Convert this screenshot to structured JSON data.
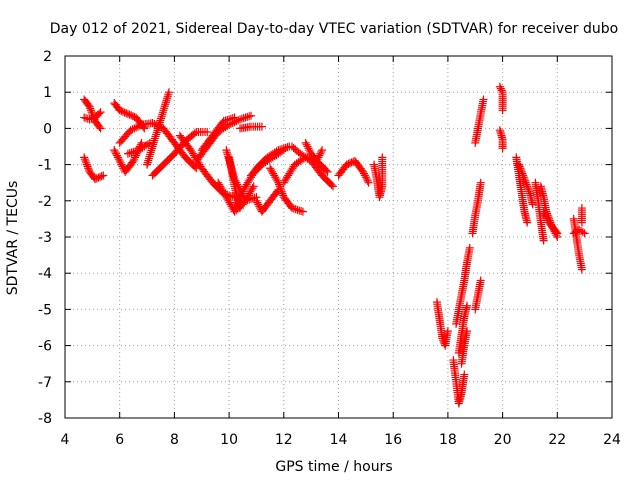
{
  "chart_data": {
    "type": "scatter",
    "title": "Day 012 of 2021, Sidereal Day-to-day VTEC variation (SDTVAR) for receiver dubo",
    "xlabel": "GPS time / hours",
    "ylabel": "SDTVAR / TECUs",
    "xlim": [
      4,
      24
    ],
    "ylim": [
      -8,
      2
    ],
    "xticks": [
      4,
      6,
      8,
      10,
      12,
      14,
      16,
      18,
      20,
      22,
      24
    ],
    "yticks": [
      -8,
      -7,
      -6,
      -5,
      -4,
      -3,
      -2,
      -1,
      0,
      1,
      2
    ],
    "grid": true,
    "marker": "+",
    "color": "#ff0000",
    "tracks": [
      [
        [
          4.7,
          0.8
        ],
        [
          4.9,
          0.6
        ],
        [
          5.1,
          0.2
        ],
        [
          5.3,
          0.0
        ]
      ],
      [
        [
          4.7,
          0.3
        ],
        [
          4.9,
          0.25
        ],
        [
          5.1,
          0.3
        ],
        [
          5.3,
          0.45
        ]
      ],
      [
        [
          4.7,
          -0.8
        ],
        [
          4.9,
          -1.2
        ],
        [
          5.1,
          -1.4
        ],
        [
          5.4,
          -1.3
        ]
      ],
      [
        [
          5.8,
          0.7
        ],
        [
          6.0,
          0.5
        ],
        [
          6.3,
          0.4
        ],
        [
          6.6,
          0.3
        ],
        [
          6.9,
          0.0
        ]
      ],
      [
        [
          5.8,
          -0.6
        ],
        [
          6.2,
          -1.2
        ],
        [
          6.5,
          -0.9
        ],
        [
          6.8,
          -0.4
        ]
      ],
      [
        [
          6.0,
          -0.4
        ],
        [
          6.4,
          -0.05
        ],
        [
          6.8,
          0.1
        ],
        [
          7.2,
          0.15
        ],
        [
          7.6,
          0.0
        ],
        [
          8.0,
          -0.4
        ],
        [
          8.4,
          -0.8
        ],
        [
          8.8,
          -1.1
        ]
      ],
      [
        [
          7.0,
          -1.0
        ],
        [
          7.2,
          -0.5
        ],
        [
          7.4,
          0.0
        ],
        [
          7.6,
          0.5
        ],
        [
          7.8,
          1.0
        ]
      ],
      [
        [
          6.3,
          -0.7
        ],
        [
          6.7,
          -0.6
        ],
        [
          7.1,
          -0.4
        ]
      ],
      [
        [
          7.2,
          -1.3
        ],
        [
          7.6,
          -1.0
        ],
        [
          8.0,
          -0.7
        ],
        [
          8.4,
          -0.35
        ],
        [
          8.8,
          -0.1
        ],
        [
          9.2,
          -0.1
        ]
      ],
      [
        [
          8.2,
          -0.2
        ],
        [
          8.6,
          -0.6
        ],
        [
          9.0,
          -1.1
        ],
        [
          9.4,
          -1.5
        ],
        [
          9.8,
          -1.8
        ],
        [
          10.2,
          -1.9
        ]
      ],
      [
        [
          8.8,
          -0.9
        ],
        [
          9.2,
          -0.5
        ],
        [
          9.6,
          -0.1
        ],
        [
          10.0,
          0.1
        ],
        [
          10.4,
          0.25
        ],
        [
          10.8,
          0.35
        ]
      ],
      [
        [
          9.0,
          -0.6
        ],
        [
          9.4,
          -0.2
        ],
        [
          9.8,
          0.2
        ],
        [
          10.2,
          0.3
        ]
      ],
      [
        [
          9.6,
          -1.5
        ],
        [
          9.9,
          -1.9
        ],
        [
          10.2,
          -2.3
        ],
        [
          10.5,
          -2.1
        ],
        [
          10.9,
          -1.6
        ]
      ],
      [
        [
          9.9,
          -0.6
        ],
        [
          10.2,
          -1.4
        ],
        [
          10.6,
          -2.0
        ],
        [
          11.0,
          -1.9
        ]
      ],
      [
        [
          10.0,
          -0.8
        ],
        [
          10.2,
          -1.6
        ],
        [
          10.4,
          -2.2
        ]
      ],
      [
        [
          10.2,
          -2.2
        ],
        [
          10.6,
          -1.6
        ],
        [
          11.0,
          -1.1
        ],
        [
          11.4,
          -0.8
        ],
        [
          11.8,
          -0.6
        ],
        [
          12.2,
          -0.5
        ]
      ],
      [
        [
          10.4,
          0.0
        ],
        [
          10.8,
          0.05
        ],
        [
          11.2,
          0.05
        ]
      ],
      [
        [
          10.8,
          -1.3
        ],
        [
          11.2,
          -1.0
        ],
        [
          11.6,
          -0.8
        ],
        [
          12.0,
          -0.6
        ]
      ],
      [
        [
          11.0,
          -2.0
        ],
        [
          11.2,
          -2.3
        ],
        [
          11.5,
          -2.0
        ],
        [
          11.8,
          -1.7
        ]
      ],
      [
        [
          11.5,
          -1.1
        ],
        [
          11.8,
          -1.5
        ],
        [
          12.0,
          -1.9
        ],
        [
          12.3,
          -2.2
        ],
        [
          12.7,
          -2.3
        ]
      ],
      [
        [
          12.0,
          -1.5
        ],
        [
          12.4,
          -1.0
        ],
        [
          12.8,
          -0.8
        ],
        [
          13.2,
          -0.9
        ],
        [
          13.6,
          -1.2
        ]
      ],
      [
        [
          12.3,
          -0.5
        ],
        [
          12.6,
          -0.7
        ],
        [
          13.0,
          -0.9
        ],
        [
          13.4,
          -1.3
        ],
        [
          13.8,
          -1.6
        ]
      ],
      [
        [
          12.8,
          -0.4
        ],
        [
          13.0,
          -0.7
        ],
        [
          13.2,
          -0.9
        ],
        [
          13.4,
          -0.6
        ]
      ],
      [
        [
          14.0,
          -1.3
        ],
        [
          14.3,
          -1.0
        ],
        [
          14.6,
          -0.9
        ],
        [
          14.9,
          -1.2
        ],
        [
          15.1,
          -1.5
        ]
      ],
      [
        [
          15.3,
          -1.0
        ],
        [
          15.4,
          -1.4
        ],
        [
          15.5,
          -1.9
        ],
        [
          15.6,
          -1.6
        ],
        [
          15.6,
          -0.8
        ]
      ],
      [
        [
          17.6,
          -4.8
        ],
        [
          17.7,
          -5.3
        ],
        [
          17.8,
          -5.8
        ],
        [
          17.9,
          -6.0
        ],
        [
          18.0,
          -5.6
        ]
      ],
      [
        [
          18.2,
          -6.4
        ],
        [
          18.3,
          -7.0
        ],
        [
          18.4,
          -7.6
        ],
        [
          18.5,
          -7.3
        ],
        [
          18.6,
          -6.8
        ]
      ],
      [
        [
          18.3,
          -5.4
        ],
        [
          18.4,
          -5.0
        ],
        [
          18.5,
          -4.6
        ],
        [
          18.6,
          -4.2
        ],
        [
          18.7,
          -3.7
        ],
        [
          18.8,
          -3.3
        ]
      ],
      [
        [
          18.4,
          -6.2
        ],
        [
          18.5,
          -5.7
        ],
        [
          18.6,
          -5.2
        ],
        [
          18.7,
          -4.9
        ]
      ],
      [
        [
          18.5,
          -6.5
        ],
        [
          18.6,
          -6.0
        ],
        [
          18.7,
          -5.6
        ]
      ],
      [
        [
          19.0,
          -5.0
        ],
        [
          19.1,
          -4.6
        ],
        [
          19.2,
          -4.2
        ]
      ],
      [
        [
          18.9,
          -2.9
        ],
        [
          19.0,
          -2.4
        ],
        [
          19.1,
          -2.0
        ],
        [
          19.2,
          -1.5
        ]
      ],
      [
        [
          19.0,
          -0.4
        ],
        [
          19.1,
          0.0
        ],
        [
          19.2,
          0.4
        ],
        [
          19.3,
          0.8
        ]
      ],
      [
        [
          19.9,
          1.15
        ],
        [
          20.0,
          1.0
        ],
        [
          20.0,
          0.5
        ]
      ],
      [
        [
          19.9,
          -0.05
        ],
        [
          20.0,
          -0.3
        ],
        [
          20.0,
          -0.55
        ]
      ],
      [
        [
          20.5,
          -0.8
        ],
        [
          20.6,
          -1.3
        ],
        [
          20.7,
          -1.8
        ],
        [
          20.8,
          -2.3
        ],
        [
          20.9,
          -2.6
        ]
      ],
      [
        [
          20.6,
          -1.0
        ],
        [
          20.8,
          -1.4
        ],
        [
          21.0,
          -1.8
        ],
        [
          21.1,
          -2.1
        ]
      ],
      [
        [
          21.2,
          -1.5
        ],
        [
          21.3,
          -2.0
        ],
        [
          21.4,
          -2.6
        ],
        [
          21.5,
          -3.1
        ]
      ],
      [
        [
          21.4,
          -1.6
        ],
        [
          21.5,
          -1.9
        ],
        [
          21.6,
          -2.3
        ],
        [
          21.8,
          -2.7
        ],
        [
          22.0,
          -3.0
        ]
      ],
      [
        [
          21.5,
          -2.3
        ],
        [
          21.7,
          -2.6
        ],
        [
          21.9,
          -2.8
        ],
        [
          22.0,
          -2.9
        ]
      ],
      [
        [
          22.6,
          -2.5
        ],
        [
          22.7,
          -3.0
        ],
        [
          22.8,
          -3.5
        ],
        [
          22.9,
          -3.9
        ]
      ],
      [
        [
          22.6,
          -2.9
        ],
        [
          22.8,
          -2.8
        ],
        [
          23.0,
          -2.9
        ]
      ],
      [
        [
          22.9,
          -2.2
        ],
        [
          22.9,
          -2.6
        ]
      ]
    ]
  }
}
